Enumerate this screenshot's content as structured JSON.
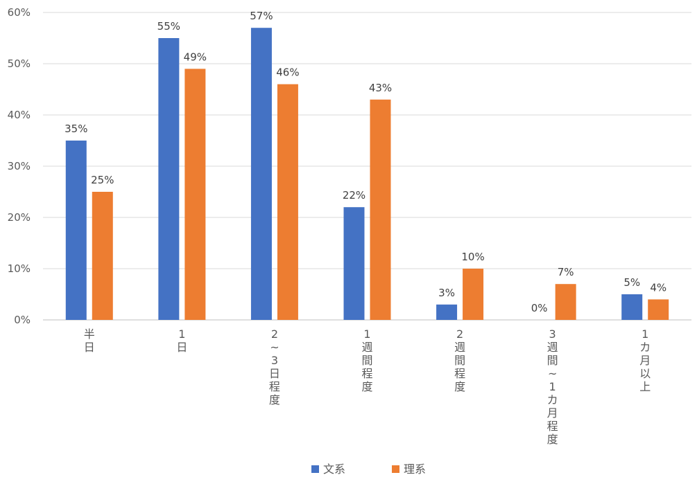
{
  "chart_data": {
    "type": "bar",
    "categories": [
      "半日",
      "1日",
      "2~3日程度",
      "1週間程度",
      "2週間程度",
      "3週間~1カ月程度",
      "1カ月以上"
    ],
    "category_labels": [
      [
        "半",
        "日"
      ],
      [
        "1",
        "日"
      ],
      [
        "2",
        "~",
        "3",
        "日",
        "程",
        "度"
      ],
      [
        "1",
        "週",
        "間",
        "程",
        "度"
      ],
      [
        "2",
        "週",
        "間",
        "程",
        "度"
      ],
      [
        "3",
        "週",
        "間",
        "~",
        "1",
        "カ",
        "月",
        "程",
        "度"
      ],
      [
        "1",
        "カ",
        "月",
        "以",
        "上"
      ]
    ],
    "series": [
      {
        "name": "文系",
        "color": "#4472C4",
        "values": [
          35,
          55,
          57,
          22,
          3,
          0,
          5
        ],
        "labels": [
          "35%",
          "55%",
          "57%",
          "22%",
          "3%",
          "0%",
          "5%"
        ]
      },
      {
        "name": "理系",
        "color": "#ED7D31",
        "values": [
          25,
          49,
          46,
          43,
          10,
          7,
          4
        ],
        "labels": [
          "25%",
          "49%",
          "46%",
          "43%",
          "10%",
          "7%",
          "4%"
        ]
      }
    ],
    "yticks": [
      "0%",
      "10%",
      "20%",
      "30%",
      "40%",
      "50%",
      "60%"
    ],
    "ylim": [
      0,
      60
    ],
    "grid": true,
    "legend_position": "bottom"
  }
}
